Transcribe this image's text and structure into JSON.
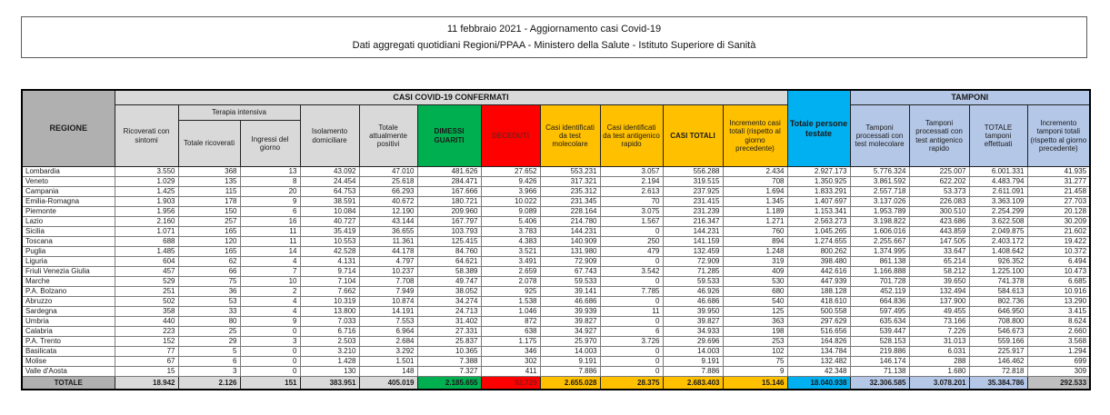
{
  "title": {
    "line1": "11 febbraio 2021 - Aggiornamento casi Covid-19",
    "line2": "Dati aggregati quotidiani Regioni/PPAA - Ministero della Salute - Istituto Superiore di Sanità"
  },
  "colors": {
    "green": "#00b050",
    "red": "#ff0000",
    "red_text": "#7f1d18",
    "yellow": "#ffc000",
    "cyan": "#00b0f0",
    "light_blue": "#b4c7e7",
    "gray_dark": "#b0b0b0",
    "gray_mid": "#bfbfbf",
    "gray_light": "#d9d9d9"
  },
  "table": {
    "group_headers": {
      "casi": "CASI COVID-19 CONFERMATI",
      "tamponi": "TAMPONI",
      "terapia_intensiva": "Terapia intensiva"
    },
    "headers": {
      "regione": "REGIONE",
      "ricoverati": "Ricoverati con sintomi",
      "ti_totale": "Totale ricoverati",
      "ti_ingressi": "Ingressi del giorno",
      "isolamento": "Isolamento domiciliare",
      "positivi": "Totale attualmente positivi",
      "guariti": "DIMESSI GUARITI",
      "deceduti": "DECEDUTI",
      "casi_molecolare": "Casi identificati da test molecolare",
      "casi_antigenico": "Casi identificati da test antigenico rapido",
      "casi_totali": "CASI TOTALI",
      "incremento_casi": "Incremento casi totali (rispetto al giorno precedente)",
      "persone_testate": "Totale persone testate",
      "tamponi_molecolare": "Tamponi processati con test molecolare",
      "tamponi_antigenico": "Tamponi processati con test antigenico rapido",
      "tamponi_totale": "TOTALE tamponi effettuati",
      "incremento_tamponi": "Incremento tamponi totali (rispetto al giorno precedente)"
    },
    "rows": [
      {
        "region": "Lombardia",
        "values": [
          "3.550",
          "368",
          "13",
          "43.092",
          "47.010",
          "481.626",
          "27.652",
          "553.231",
          "3.057",
          "556.288",
          "2.434",
          "2.927.173",
          "5.776.324",
          "225.007",
          "6.001.331",
          "41.935"
        ]
      },
      {
        "region": "Veneto",
        "values": [
          "1.029",
          "135",
          "8",
          "24.454",
          "25.618",
          "284.471",
          "9.426",
          "317.321",
          "2.194",
          "319.515",
          "708",
          "1.350.925",
          "3.861.592",
          "622.202",
          "4.483.794",
          "31.277"
        ]
      },
      {
        "region": "Campania",
        "values": [
          "1.425",
          "115",
          "20",
          "64.753",
          "66.293",
          "167.666",
          "3.966",
          "235.312",
          "2.613",
          "237.925",
          "1.694",
          "1.833.291",
          "2.557.718",
          "53.373",
          "2.611.091",
          "21.458"
        ]
      },
      {
        "region": "Emilia-Romagna",
        "values": [
          "1.903",
          "178",
          "9",
          "38.591",
          "40.672",
          "180.721",
          "10.022",
          "231.345",
          "70",
          "231.415",
          "1.345",
          "1.407.697",
          "3.137.026",
          "226.083",
          "3.363.109",
          "27.703"
        ]
      },
      {
        "region": "Piemonte",
        "values": [
          "1.956",
          "150",
          "6",
          "10.084",
          "12.190",
          "209.960",
          "9.089",
          "228.164",
          "3.075",
          "231.239",
          "1.189",
          "1.153.341",
          "1.953.789",
          "300.510",
          "2.254.299",
          "20.128"
        ]
      },
      {
        "region": "Lazio",
        "values": [
          "2.160",
          "257",
          "16",
          "40.727",
          "43.144",
          "167.797",
          "5.406",
          "214.780",
          "1.567",
          "216.347",
          "1.271",
          "2.563.273",
          "3.198.822",
          "423.686",
          "3.622.508",
          "30.209"
        ]
      },
      {
        "region": "Sicilia",
        "values": [
          "1.071",
          "165",
          "11",
          "35.419",
          "36.655",
          "103.793",
          "3.783",
          "144.231",
          "0",
          "144.231",
          "760",
          "1.045.265",
          "1.606.016",
          "443.859",
          "2.049.875",
          "21.602"
        ]
      },
      {
        "region": "Toscana",
        "values": [
          "688",
          "120",
          "11",
          "10.553",
          "11.361",
          "125.415",
          "4.383",
          "140.909",
          "250",
          "141.159",
          "894",
          "1.274.655",
          "2.255.667",
          "147.505",
          "2.403.172",
          "19.422"
        ]
      },
      {
        "region": "Puglia",
        "values": [
          "1.485",
          "165",
          "14",
          "42.528",
          "44.178",
          "84.760",
          "3.521",
          "131.980",
          "479",
          "132.459",
          "1.248",
          "800.262",
          "1.374.995",
          "33.647",
          "1.408.642",
          "10.372"
        ]
      },
      {
        "region": "Liguria",
        "values": [
          "604",
          "62",
          "4",
          "4.131",
          "4.797",
          "64.621",
          "3.491",
          "72.909",
          "0",
          "72.909",
          "319",
          "398.480",
          "861.138",
          "65.214",
          "926.352",
          "6.494"
        ]
      },
      {
        "region": "Friuli Venezia Giulia",
        "values": [
          "457",
          "66",
          "7",
          "9.714",
          "10.237",
          "58.389",
          "2.659",
          "67.743",
          "3.542",
          "71.285",
          "409",
          "442.616",
          "1.166.888",
          "58.212",
          "1.225.100",
          "10.473"
        ]
      },
      {
        "region": "Marche",
        "values": [
          "529",
          "75",
          "10",
          "7.104",
          "7.708",
          "49.747",
          "2.078",
          "59.533",
          "0",
          "59.533",
          "530",
          "447.939",
          "701.728",
          "39.650",
          "741.378",
          "6.685"
        ]
      },
      {
        "region": "P.A. Bolzano",
        "values": [
          "251",
          "36",
          "2",
          "7.662",
          "7.949",
          "38.052",
          "925",
          "39.141",
          "7.785",
          "46.926",
          "680",
          "188.128",
          "452.119",
          "132.494",
          "584.613",
          "10.916"
        ]
      },
      {
        "region": "Abruzzo",
        "values": [
          "502",
          "53",
          "4",
          "10.319",
          "10.874",
          "34.274",
          "1.538",
          "46.686",
          "0",
          "46.686",
          "540",
          "418.610",
          "664.836",
          "137.900",
          "802.736",
          "13.290"
        ]
      },
      {
        "region": "Sardegna",
        "values": [
          "358",
          "33",
          "4",
          "13.800",
          "14.191",
          "24.713",
          "1.046",
          "39.939",
          "11",
          "39.950",
          "125",
          "500.558",
          "597.495",
          "49.455",
          "646.950",
          "3.415"
        ]
      },
      {
        "region": "Umbria",
        "values": [
          "440",
          "80",
          "9",
          "7.033",
          "7.553",
          "31.402",
          "872",
          "39.827",
          "0",
          "39.827",
          "363",
          "297.629",
          "635.634",
          "73.166",
          "708.800",
          "8.624"
        ]
      },
      {
        "region": "Calabria",
        "values": [
          "223",
          "25",
          "0",
          "6.716",
          "6.964",
          "27.331",
          "638",
          "34.927",
          "6",
          "34.933",
          "198",
          "516.656",
          "539.447",
          "7.226",
          "546.673",
          "2.660"
        ]
      },
      {
        "region": "P.A. Trento",
        "values": [
          "152",
          "29",
          "3",
          "2.503",
          "2.684",
          "25.837",
          "1.175",
          "25.970",
          "3.726",
          "29.696",
          "253",
          "164.826",
          "528.153",
          "31.013",
          "559.166",
          "3.568"
        ]
      },
      {
        "region": "Basilicata",
        "values": [
          "77",
          "5",
          "0",
          "3.210",
          "3.292",
          "10.365",
          "346",
          "14.003",
          "0",
          "14.003",
          "102",
          "134.784",
          "219.886",
          "6.031",
          "225.917",
          "1.294"
        ]
      },
      {
        "region": "Molise",
        "values": [
          "67",
          "6",
          "0",
          "1.428",
          "1.501",
          "7.388",
          "302",
          "9.191",
          "0",
          "9.191",
          "75",
          "132.482",
          "146.174",
          "288",
          "146.462",
          "699"
        ]
      },
      {
        "region": "Valle d'Aosta",
        "values": [
          "15",
          "3",
          "0",
          "130",
          "148",
          "7.327",
          "411",
          "7.886",
          "0",
          "7.886",
          "9",
          "42.348",
          "71.138",
          "1.680",
          "72.818",
          "309"
        ]
      }
    ],
    "total_row": {
      "label": "TOTALE",
      "values": [
        "18.942",
        "2.126",
        "151",
        "383.951",
        "405.019",
        "2.185.655",
        "92.729",
        "2.655.028",
        "28.375",
        "2.683.403",
        "15.146",
        "18.040.938",
        "32.306.585",
        "3.078.201",
        "35.384.786",
        "292.533"
      ]
    }
  }
}
